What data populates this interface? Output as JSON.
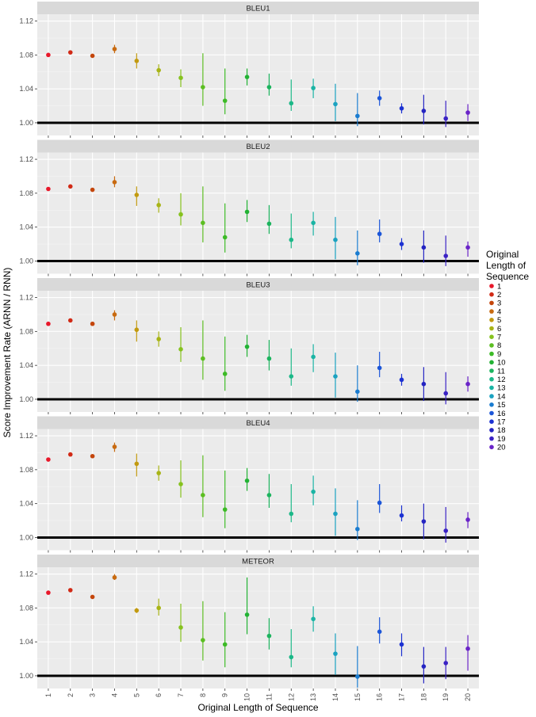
{
  "chart_data": {
    "type": "scatter",
    "subtype": "faceted point-range (mean with interval), one facet per metric",
    "xlabel": "Original Length of Sequence",
    "ylabel": "Score Improvement Rate (ARNN / RNN)",
    "x_ticks": [
      1,
      2,
      3,
      4,
      5,
      6,
      7,
      8,
      9,
      10,
      11,
      12,
      13,
      14,
      15,
      16,
      17,
      18,
      19,
      20
    ],
    "y_ticks": [
      "1.00",
      "1.04",
      "1.08",
      "1.12"
    ],
    "ylim": [
      0.985,
      1.128
    ],
    "reference_line_y": 1.0,
    "grid": true,
    "legend": {
      "title": [
        "Original",
        "Length of",
        "Sequence"
      ],
      "placement": "right",
      "entries": [
        "1",
        "2",
        "3",
        "4",
        "5",
        "6",
        "7",
        "8",
        "9",
        "10",
        "11",
        "12",
        "13",
        "14",
        "15",
        "16",
        "17",
        "18",
        "19",
        "20"
      ]
    },
    "colors": [
      "#e8182a",
      "#d12a16",
      "#c4460c",
      "#c86a10",
      "#c29a10",
      "#a8b416",
      "#86c21e",
      "#5cbe22",
      "#3cba26",
      "#22b234",
      "#1cb45e",
      "#1cb888",
      "#1ab4a4",
      "#1aa2c0",
      "#1a7cd0",
      "#1c56d8",
      "#1c32d2",
      "#2424c2",
      "#3a22c4",
      "#6a24c8"
    ],
    "facets": [
      {
        "label": "BLEU1",
        "mean": [
          1.08,
          1.083,
          1.079,
          1.087,
          1.073,
          1.062,
          1.053,
          1.042,
          1.026,
          1.054,
          1.042,
          1.023,
          1.041,
          1.022,
          1.008,
          1.029,
          1.017,
          1.014,
          1.005,
          1.012
        ],
        "lower": [
          null,
          null,
          null,
          1.082,
          1.064,
          1.055,
          1.042,
          1.02,
          1.01,
          1.044,
          1.032,
          1.014,
          1.029,
          1.002,
          0.996,
          1.02,
          1.011,
          0.998,
          0.995,
          1.002
        ],
        "upper": [
          null,
          null,
          null,
          1.092,
          1.082,
          1.069,
          1.063,
          1.082,
          1.064,
          1.064,
          1.058,
          1.051,
          1.052,
          1.046,
          1.035,
          1.038,
          1.023,
          1.033,
          1.026,
          1.022
        ]
      },
      {
        "label": "BLEU2",
        "mean": [
          1.085,
          1.088,
          1.084,
          1.093,
          1.078,
          1.066,
          1.055,
          1.045,
          1.028,
          1.058,
          1.044,
          1.025,
          1.045,
          1.025,
          1.009,
          1.032,
          1.02,
          1.016,
          1.006,
          1.016
        ],
        "lower": [
          null,
          null,
          null,
          1.087,
          1.065,
          1.057,
          1.042,
          1.022,
          1.01,
          1.046,
          1.032,
          1.015,
          1.03,
          1.002,
          0.995,
          1.022,
          1.013,
          0.998,
          0.994,
          1.005
        ],
        "upper": [
          null,
          null,
          null,
          1.1,
          1.088,
          1.074,
          1.08,
          1.088,
          1.068,
          1.072,
          1.066,
          1.056,
          1.058,
          1.052,
          1.036,
          1.049,
          1.027,
          1.036,
          1.03,
          1.023
        ]
      },
      {
        "label": "BLEU3",
        "mean": [
          1.089,
          1.093,
          1.089,
          1.1,
          1.082,
          1.071,
          1.059,
          1.048,
          1.03,
          1.062,
          1.048,
          1.027,
          1.05,
          1.027,
          1.009,
          1.037,
          1.023,
          1.018,
          1.007,
          1.018
        ],
        "lower": [
          null,
          null,
          null,
          1.093,
          1.068,
          1.062,
          1.044,
          1.023,
          1.01,
          1.05,
          1.034,
          1.016,
          1.032,
          1.002,
          0.997,
          1.026,
          1.016,
          0.998,
          0.994,
          1.009
        ],
        "upper": [
          null,
          null,
          null,
          1.105,
          1.093,
          1.08,
          1.085,
          1.093,
          1.074,
          1.076,
          1.07,
          1.06,
          1.065,
          1.055,
          1.04,
          1.056,
          1.03,
          1.038,
          1.032,
          1.027
        ]
      },
      {
        "label": "BLEU4",
        "mean": [
          1.092,
          1.098,
          1.096,
          1.107,
          1.087,
          1.076,
          1.063,
          1.05,
          1.033,
          1.067,
          1.05,
          1.028,
          1.054,
          1.028,
          1.01,
          1.041,
          1.026,
          1.019,
          1.008,
          1.021
        ],
        "lower": [
          null,
          null,
          null,
          1.101,
          1.072,
          1.067,
          1.047,
          1.024,
          1.011,
          1.055,
          1.035,
          1.018,
          1.038,
          1.002,
          0.997,
          1.029,
          1.019,
          0.998,
          0.994,
          1.011
        ],
        "upper": [
          null,
          null,
          null,
          1.112,
          1.099,
          1.085,
          1.091,
          1.097,
          1.079,
          1.082,
          1.075,
          1.063,
          1.073,
          1.058,
          1.044,
          1.063,
          1.038,
          1.04,
          1.036,
          1.03
        ]
      },
      {
        "label": "METEOR",
        "mean": [
          1.098,
          1.101,
          1.093,
          1.116,
          1.077,
          1.08,
          1.057,
          1.042,
          1.037,
          1.072,
          1.047,
          1.022,
          1.067,
          1.026,
          0.999,
          1.052,
          1.037,
          1.011,
          1.015,
          1.032
        ],
        "lower": [
          null,
          null,
          null,
          1.113,
          1.074,
          1.071,
          1.04,
          1.018,
          1.01,
          1.049,
          1.031,
          1.01,
          1.052,
          1.001,
          0.986,
          1.038,
          1.023,
          0.991,
          0.996,
          1.006
        ],
        "upper": [
          null,
          null,
          null,
          1.12,
          1.08,
          1.091,
          1.085,
          1.088,
          1.075,
          1.116,
          1.068,
          1.055,
          1.082,
          1.05,
          1.035,
          1.069,
          1.05,
          1.034,
          1.034,
          1.048
        ]
      }
    ]
  }
}
